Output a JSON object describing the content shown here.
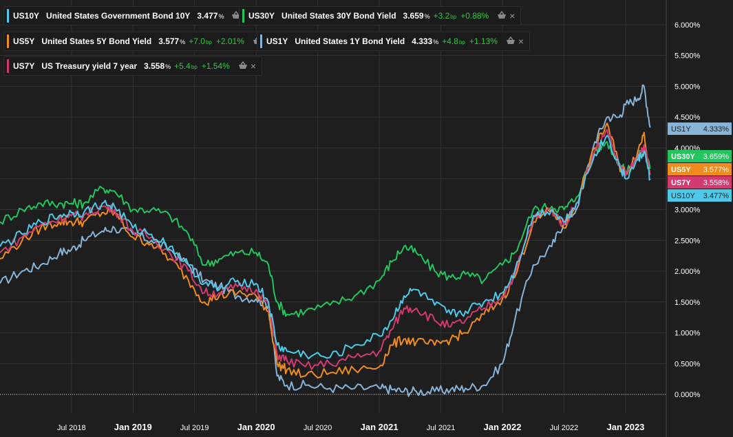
{
  "colors": {
    "background": "#1e1e1e",
    "grid": "#333333",
    "axis_text": "#ffffff",
    "US10Y": "#4ec9e8",
    "US30Y": "#22c55e",
    "US5Y": "#f08c1e",
    "US1Y": "#88b4d8",
    "US7Y": "#d33a70"
  },
  "legend": [
    {
      "symbol": "US10Y",
      "name": "United States Government Bond 10Y",
      "price": "3.477",
      "price_unit": "%",
      "change_bp": "",
      "change_pct": "",
      "color": "#4ec9e8",
      "icon": "basket-icon",
      "close": "×"
    },
    {
      "symbol": "US30Y",
      "name": "United States 30Y Bond Yield",
      "price": "3.659",
      "price_unit": "%",
      "change_bp": "+3.2",
      "change_pct": "+0.88%",
      "color": "#22c55e",
      "icon": "basket-icon",
      "close": "×"
    },
    {
      "symbol": "US5Y",
      "name": "United States 5Y Bond Yield",
      "price": "3.577",
      "price_unit": "%",
      "change_bp": "+7.0",
      "change_pct": "+2.01%",
      "color": "#f08c1e",
      "icon": "basket-icon",
      "close": "×"
    },
    {
      "symbol": "US1Y",
      "name": "United States 1Y Bond Yield",
      "price": "4.333",
      "price_unit": "%",
      "change_bp": "+4.8",
      "change_pct": "+1.13%",
      "color": "#88b4d8",
      "icon": "basket-icon",
      "close": "×"
    },
    {
      "symbol": "US7Y",
      "name": "US Treasury yield 7 year",
      "price": "3.558",
      "price_unit": "%",
      "change_bp": "+5.4",
      "change_pct": "+1.54%",
      "color": "#d33a70",
      "icon": "basket-icon",
      "close": "×"
    }
  ],
  "bp_unit": "bp",
  "price_tags": [
    {
      "symbol": "US1Y",
      "value": "4.333%",
      "bg": "#88b4d8",
      "fg": "#1e1e1e"
    },
    {
      "symbol": "US30Y",
      "value": "3.659%",
      "bg": "#22c55e",
      "fg": "#ffffff"
    },
    {
      "symbol": "US5Y",
      "value": "3.577%",
      "bg": "#f08c1e",
      "fg": "#ffffff"
    },
    {
      "symbol": "US7Y",
      "value": "3.558%",
      "bg": "#d33a70",
      "fg": "#ffffff"
    },
    {
      "symbol": "US10Y",
      "value": "3.477%",
      "bg": "#4ec9e8",
      "fg": "#1e1e1e"
    }
  ],
  "chart_data": {
    "type": "line",
    "title": "",
    "xlabel": "",
    "ylabel": "",
    "x_range": [
      2017.92,
      2023.33
    ],
    "ylim": [
      -0.3,
      6.4
    ],
    "grid": true,
    "legend_position": "top-left",
    "y_ticks": [
      0,
      0.5,
      1,
      1.5,
      2,
      2.5,
      3,
      3.5,
      4,
      4.5,
      5,
      5.5,
      6
    ],
    "y_tick_labels": [
      "0.000%",
      "0.500%",
      "1.000%",
      "1.500%",
      "2.000%",
      "2.500%",
      "3.000%",
      "3.500%",
      "4.000%",
      "4.500%",
      "5.000%",
      "5.500%",
      "6.000%"
    ],
    "x_ticks": [
      2018.5,
      2019.0,
      2019.5,
      2020.0,
      2020.5,
      2021.0,
      2021.5,
      2022.0,
      2022.5,
      2023.0
    ],
    "x_tick_labels": [
      "Jul 2018",
      "Jan 2019",
      "Jul 2019",
      "Jan 2020",
      "Jul 2020",
      "Jan 2021",
      "Jul 2021",
      "Jan 2022",
      "Jul 2022",
      "Jan 2023"
    ],
    "x_tick_bold": [
      false,
      true,
      false,
      true,
      false,
      true,
      false,
      true,
      false,
      true
    ],
    "series": [
      {
        "name": "US10Y",
        "color": "#4ec9e8",
        "x": [
          2017.92,
          2018.1,
          2018.25,
          2018.4,
          2018.5,
          2018.6,
          2018.75,
          2018.85,
          2019.0,
          2019.15,
          2019.3,
          2019.45,
          2019.58,
          2019.7,
          2019.85,
          2020.0,
          2020.1,
          2020.17,
          2020.25,
          2020.4,
          2020.6,
          2020.8,
          2021.0,
          2021.1,
          2021.2,
          2021.3,
          2021.45,
          2021.58,
          2021.7,
          2021.85,
          2022.0,
          2022.1,
          2022.25,
          2022.4,
          2022.5,
          2022.6,
          2022.75,
          2022.85,
          2022.95,
          2023.0,
          2023.1,
          2023.15,
          2023.2
        ],
        "y": [
          2.4,
          2.6,
          2.8,
          2.9,
          2.95,
          2.95,
          3.1,
          3.05,
          2.7,
          2.6,
          2.4,
          2.1,
          1.8,
          1.7,
          1.85,
          1.8,
          1.5,
          0.8,
          0.7,
          0.65,
          0.6,
          0.8,
          0.95,
          1.2,
          1.6,
          1.7,
          1.45,
          1.3,
          1.35,
          1.5,
          1.65,
          2.0,
          2.9,
          3.0,
          2.8,
          3.1,
          3.9,
          4.2,
          3.7,
          3.5,
          3.8,
          3.95,
          3.5
        ]
      },
      {
        "name": "US30Y",
        "color": "#22c55e",
        "x": [
          2017.92,
          2018.1,
          2018.25,
          2018.4,
          2018.5,
          2018.6,
          2018.75,
          2018.85,
          2019.0,
          2019.15,
          2019.3,
          2019.45,
          2019.58,
          2019.7,
          2019.85,
          2020.0,
          2020.1,
          2020.17,
          2020.25,
          2020.4,
          2020.6,
          2020.8,
          2021.0,
          2021.1,
          2021.2,
          2021.3,
          2021.45,
          2021.58,
          2021.7,
          2021.85,
          2022.0,
          2022.1,
          2022.25,
          2022.4,
          2022.5,
          2022.6,
          2022.75,
          2022.85,
          2022.95,
          2023.0,
          2023.1,
          2023.15,
          2023.2
        ],
        "y": [
          2.8,
          3.0,
          3.1,
          3.1,
          3.1,
          3.1,
          3.35,
          3.3,
          3.0,
          3.0,
          2.9,
          2.6,
          2.1,
          2.2,
          2.3,
          2.3,
          2.1,
          1.5,
          1.3,
          1.35,
          1.45,
          1.6,
          1.85,
          2.15,
          2.4,
          2.3,
          2.0,
          1.9,
          1.95,
          1.85,
          2.1,
          2.3,
          3.0,
          3.05,
          3.0,
          3.2,
          3.95,
          4.1,
          3.75,
          3.6,
          3.85,
          4.0,
          3.66
        ]
      },
      {
        "name": "US5Y",
        "color": "#f08c1e",
        "x": [
          2017.92,
          2018.1,
          2018.25,
          2018.4,
          2018.5,
          2018.6,
          2018.75,
          2018.85,
          2019.0,
          2019.15,
          2019.3,
          2019.45,
          2019.58,
          2019.7,
          2019.85,
          2020.0,
          2020.1,
          2020.17,
          2020.25,
          2020.4,
          2020.6,
          2020.8,
          2021.0,
          2021.1,
          2021.2,
          2021.3,
          2021.45,
          2021.58,
          2021.7,
          2021.85,
          2022.0,
          2022.1,
          2022.25,
          2022.4,
          2022.5,
          2022.6,
          2022.75,
          2022.85,
          2022.95,
          2023.0,
          2023.1,
          2023.15,
          2023.2
        ],
        "y": [
          2.2,
          2.5,
          2.7,
          2.8,
          2.8,
          2.8,
          2.95,
          2.95,
          2.55,
          2.45,
          2.2,
          1.85,
          1.5,
          1.6,
          1.65,
          1.6,
          1.35,
          0.5,
          0.4,
          0.3,
          0.35,
          0.4,
          0.45,
          0.8,
          0.9,
          0.85,
          0.8,
          0.9,
          1.0,
          1.3,
          1.55,
          1.9,
          2.8,
          3.0,
          2.7,
          3.1,
          4.0,
          4.4,
          3.7,
          3.6,
          3.95,
          4.25,
          3.58
        ]
      },
      {
        "name": "US1Y",
        "color": "#88b4d8",
        "x": [
          2017.92,
          2018.1,
          2018.25,
          2018.4,
          2018.5,
          2018.6,
          2018.75,
          2018.85,
          2019.0,
          2019.15,
          2019.3,
          2019.45,
          2019.58,
          2019.7,
          2019.85,
          2020.0,
          2020.1,
          2020.17,
          2020.25,
          2020.4,
          2020.6,
          2020.8,
          2021.0,
          2021.1,
          2021.2,
          2021.3,
          2021.45,
          2021.58,
          2021.7,
          2021.85,
          2022.0,
          2022.1,
          2022.25,
          2022.4,
          2022.5,
          2022.6,
          2022.75,
          2022.85,
          2022.95,
          2023.0,
          2023.1,
          2023.15,
          2023.2
        ],
        "y": [
          1.8,
          2.0,
          2.1,
          2.3,
          2.35,
          2.5,
          2.65,
          2.7,
          2.6,
          2.5,
          2.35,
          2.1,
          1.85,
          1.75,
          1.6,
          1.55,
          1.45,
          0.3,
          0.15,
          0.15,
          0.1,
          0.1,
          0.1,
          0.08,
          0.05,
          0.05,
          0.05,
          0.08,
          0.1,
          0.15,
          0.5,
          1.2,
          2.1,
          2.4,
          2.8,
          3.0,
          4.1,
          4.5,
          4.5,
          4.7,
          4.8,
          5.0,
          4.33
        ]
      },
      {
        "name": "US7Y",
        "color": "#d33a70",
        "x": [
          2017.92,
          2018.1,
          2018.25,
          2018.4,
          2018.5,
          2018.6,
          2018.75,
          2018.85,
          2019.0,
          2019.15,
          2019.3,
          2019.45,
          2019.58,
          2019.7,
          2019.85,
          2020.0,
          2020.1,
          2020.17,
          2020.25,
          2020.4,
          2020.6,
          2020.8,
          2021.0,
          2021.1,
          2021.2,
          2021.3,
          2021.45,
          2021.58,
          2021.7,
          2021.85,
          2022.0,
          2022.1,
          2022.25,
          2022.4,
          2022.5,
          2022.6,
          2022.75,
          2022.85,
          2022.95,
          2023.0,
          2023.1,
          2023.15,
          2023.2
        ],
        "y": [
          2.3,
          2.55,
          2.75,
          2.85,
          2.9,
          2.9,
          3.05,
          3.0,
          2.65,
          2.55,
          2.3,
          2.0,
          1.65,
          1.65,
          1.75,
          1.7,
          1.45,
          0.65,
          0.55,
          0.45,
          0.5,
          0.6,
          0.7,
          1.05,
          1.4,
          1.4,
          1.2,
          1.1,
          1.2,
          1.4,
          1.6,
          1.95,
          2.85,
          3.0,
          2.75,
          3.1,
          3.95,
          4.3,
          3.7,
          3.55,
          3.85,
          4.05,
          3.56
        ]
      }
    ]
  }
}
